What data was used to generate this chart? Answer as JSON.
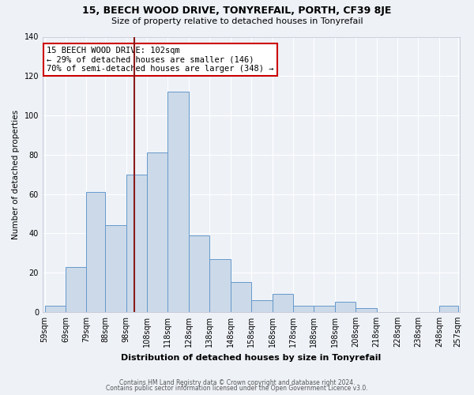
{
  "title": "15, BEECH WOOD DRIVE, TONYREFAIL, PORTH, CF39 8JE",
  "subtitle": "Size of property relative to detached houses in Tonyrefail",
  "xlabel": "Distribution of detached houses by size in Tonyrefail",
  "ylabel": "Number of detached properties",
  "bar_color": "#ccd9e8",
  "bar_edge_color": "#6699cc",
  "background_color": "#eef2f7",
  "grid_color": "#ffffff",
  "bin_edges": [
    59,
    69,
    79,
    88,
    98,
    108,
    118,
    128,
    138,
    148,
    158,
    168,
    178,
    188,
    198,
    208,
    218,
    228,
    238,
    248,
    257
  ],
  "bin_labels": [
    "59sqm",
    "69sqm",
    "79sqm",
    "88sqm",
    "98sqm",
    "108sqm",
    "118sqm",
    "128sqm",
    "138sqm",
    "148sqm",
    "158sqm",
    "168sqm",
    "178sqm",
    "188sqm",
    "198sqm",
    "208sqm",
    "218sqm",
    "228sqm",
    "238sqm",
    "248sqm",
    "257sqm"
  ],
  "counts": [
    3,
    23,
    61,
    44,
    70,
    81,
    112,
    39,
    27,
    15,
    6,
    9,
    3,
    3,
    5,
    2,
    0,
    0,
    0,
    3
  ],
  "vline_x": 102,
  "vline_color": "#8b1a1a",
  "annotation_title": "15 BEECH WOOD DRIVE: 102sqm",
  "annotation_line1": "← 29% of detached houses are smaller (146)",
  "annotation_line2": "70% of semi-detached houses are larger (348) →",
  "annotation_box_color": "#ffffff",
  "annotation_box_edge": "#cc0000",
  "ylim": [
    0,
    140
  ],
  "yticks": [
    0,
    20,
    40,
    60,
    80,
    100,
    120,
    140
  ],
  "footer1": "Contains HM Land Registry data © Crown copyright and database right 2024.",
  "footer2": "Contains public sector information licensed under the Open Government Licence v3.0."
}
